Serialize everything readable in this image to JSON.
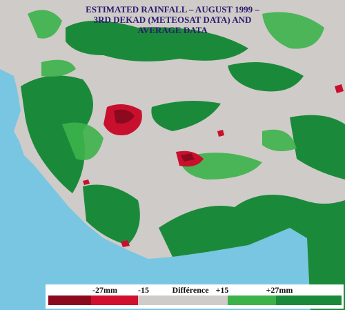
{
  "title": {
    "lines": [
      "ESTIMATED RAINFALL – AUGUST 1999 –",
      "3RD DEKAD (METEOSAT DATA) AND",
      "AVERAGE DATA"
    ]
  },
  "legend": {
    "labels": [
      "-27mm",
      "-15",
      "Différence",
      "+15",
      "+27mm"
    ]
  }
}
